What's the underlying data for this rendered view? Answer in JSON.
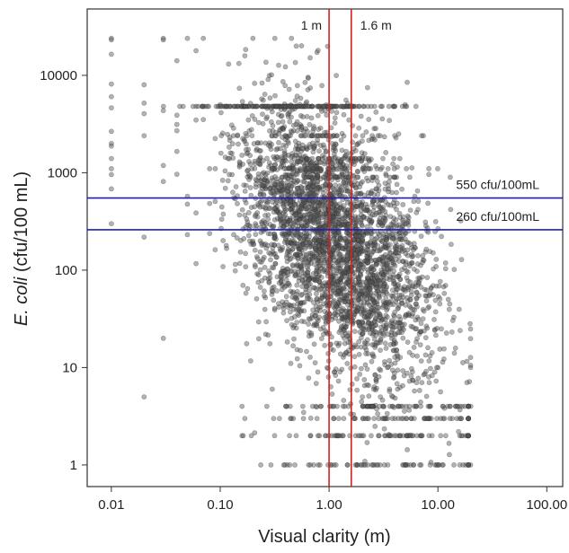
{
  "chart_data": {
    "type": "scatter",
    "xlabel": "Visual clarity (m)",
    "ylabel_italic": "E. coli",
    "ylabel_rest": " (cfu/100 mL)",
    "x_scale": "log",
    "y_scale": "log",
    "xlim": [
      0.006,
      140
    ],
    "ylim": [
      0.6,
      48000
    ],
    "x_ticks": [
      0.01,
      0.1,
      1,
      10,
      100
    ],
    "x_tick_labels": [
      "0.01",
      "0.10",
      "1.00",
      "10.00",
      "100.00"
    ],
    "y_ticks": [
      1,
      10,
      100,
      1000,
      10000
    ],
    "y_tick_labels": [
      "1",
      "10",
      "100",
      "1000",
      "10000"
    ],
    "grid": false,
    "point_color": "#555555",
    "vertical_lines": [
      {
        "x": 1.0,
        "label": "1 m",
        "color": "#d42020"
      },
      {
        "x": 1.6,
        "label": "1.6 m",
        "color": "#d42020"
      }
    ],
    "horizontal_lines": [
      {
        "y": 550,
        "label": "550 cfu/100mL",
        "color": "#1f1fb4"
      },
      {
        "y": 260,
        "label": "260 cfu/100mL",
        "color": "#1f1fb4"
      }
    ],
    "points_sample": [
      [
        0.01,
        24000
      ],
      [
        0.01,
        2000
      ],
      [
        0.01,
        1100
      ],
      [
        0.01,
        300
      ],
      [
        0.02,
        8000
      ],
      [
        0.02,
        5
      ],
      [
        0.03,
        20
      ],
      [
        0.03,
        24000
      ],
      [
        0.05,
        24000
      ],
      [
        0.1,
        5000
      ],
      [
        0.2,
        24000
      ],
      [
        0.5,
        20000
      ],
      [
        1.0,
        1000
      ],
      [
        1.6,
        100
      ],
      [
        2.0,
        60
      ],
      [
        3.0,
        30
      ],
      [
        5.0,
        5000
      ],
      [
        10.0,
        10
      ],
      [
        15.0,
        4
      ],
      [
        18.0,
        1
      ],
      [
        20.0,
        4
      ]
    ]
  }
}
